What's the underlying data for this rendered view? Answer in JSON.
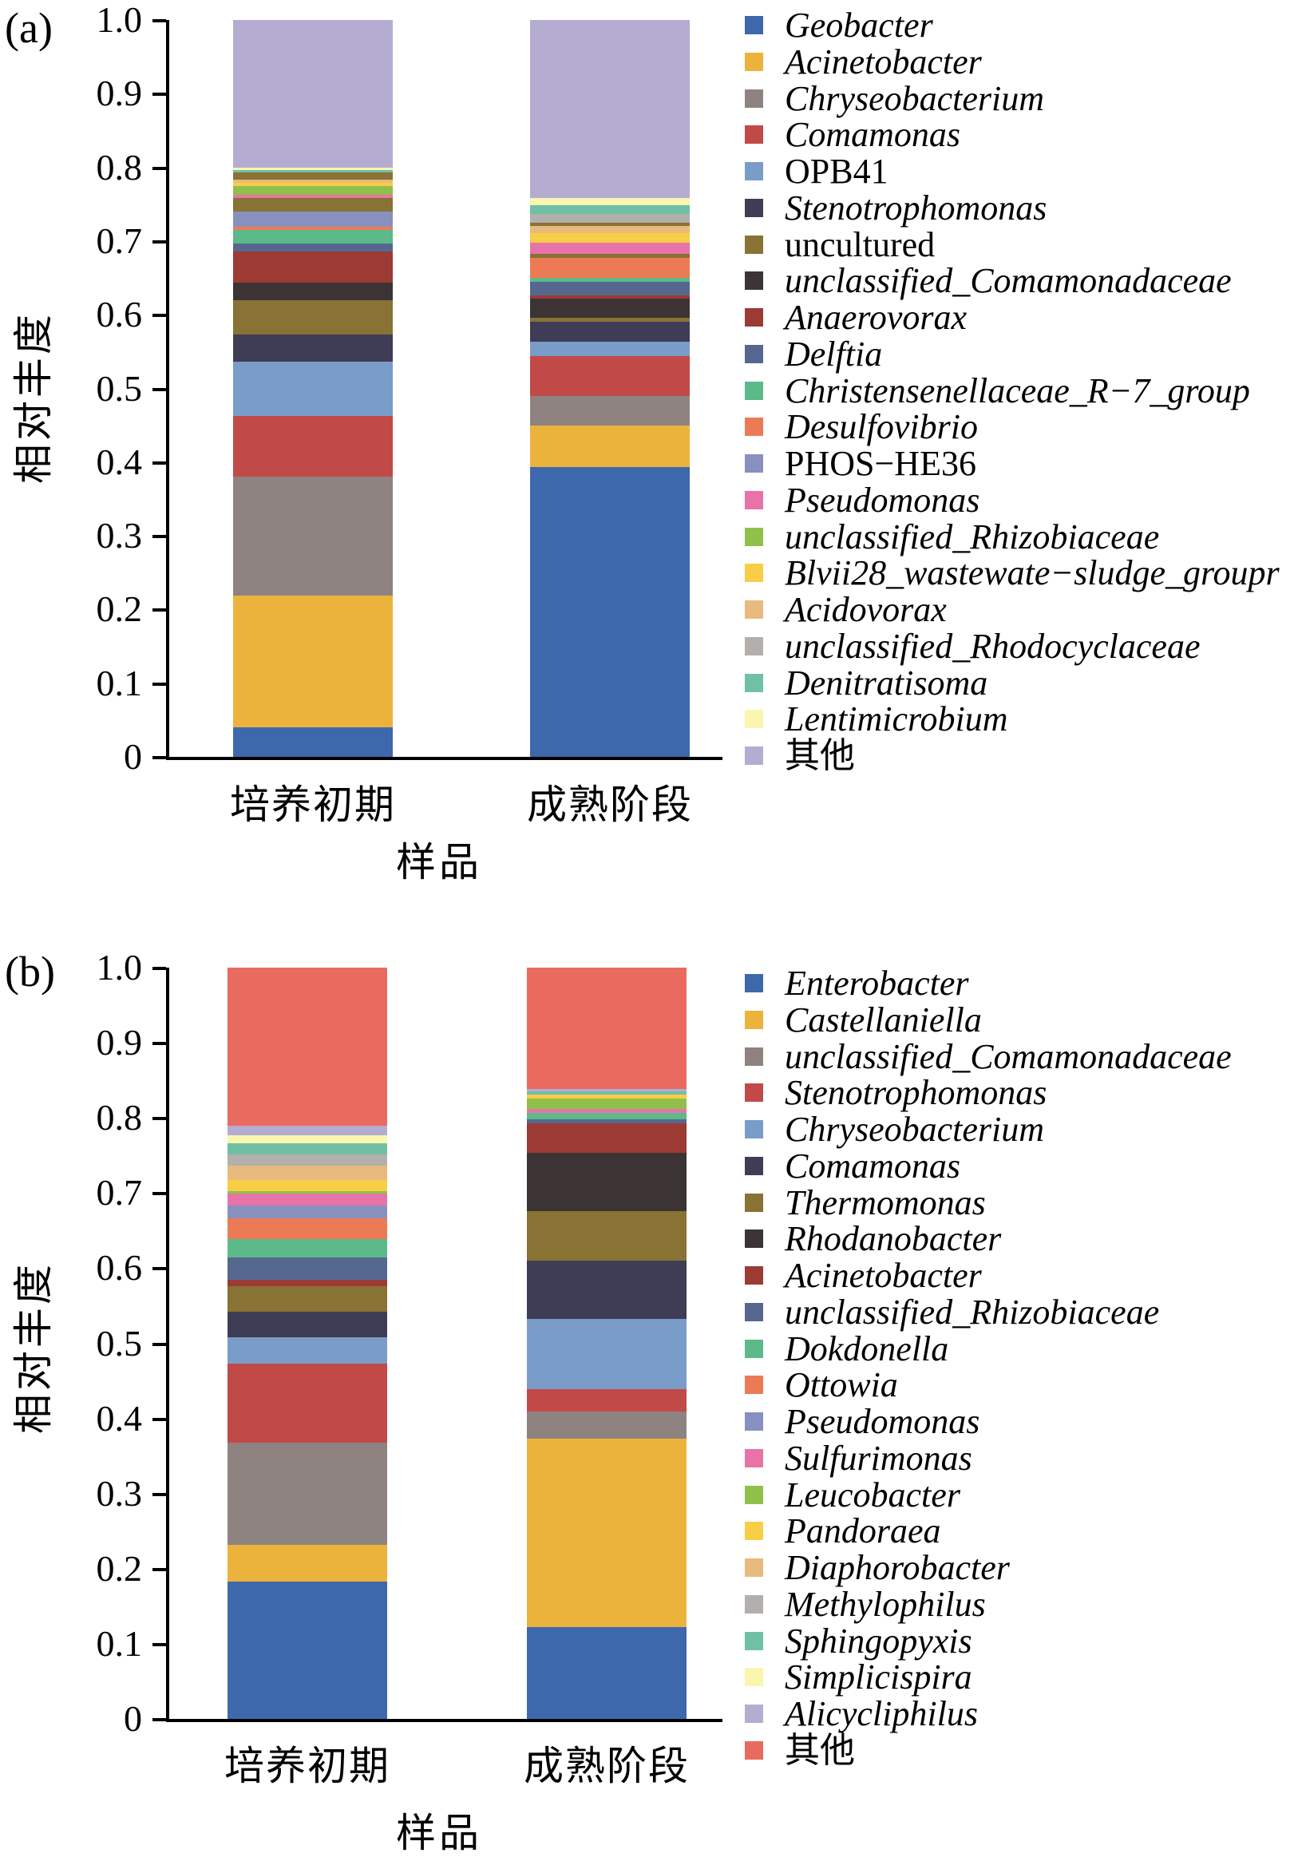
{
  "figure": {
    "panels": [
      "(a)",
      "(b)"
    ],
    "ylabel": "相对丰度",
    "xlabel": "样品",
    "categories": [
      "培养初期",
      "成熟阶段"
    ]
  },
  "chart_data": [
    {
      "type": "stacked_bar",
      "panel": "(a)",
      "ylabel": "相对丰度",
      "xlabel": "样品",
      "ylim": [
        0,
        1
      ],
      "grid": false,
      "legend_position": "right",
      "tick_labels": [
        "1.0",
        "0.9",
        "0.8",
        "0.7",
        "0.6",
        "0.5",
        "0.4",
        "0.3",
        "0.2",
        "0.1",
        "0"
      ],
      "categories": [
        "培养初期",
        "成熟阶段"
      ],
      "legend": [
        {
          "label": "Geobacter",
          "color": "#3E68AC",
          "italic": true
        },
        {
          "label": "Acinetobacter",
          "color": "#ECB33C",
          "italic": true
        },
        {
          "label": "Chryseobacterium",
          "color": "#8E8380",
          "italic": true
        },
        {
          "label": "Comamonas",
          "color": "#C14A48",
          "italic": true
        },
        {
          "label": "OPB41",
          "color": "#7A9CC8",
          "italic": false
        },
        {
          "label": "Stenotrophomonas",
          "color": "#3F3C56",
          "italic": true
        },
        {
          "label": "uncultured",
          "color": "#887234",
          "italic": false
        },
        {
          "label": "unclassified_Comamonadaceae",
          "color": "#3B3334",
          "italic": true
        },
        {
          "label": "Anaerovorax",
          "color": "#9C3A34",
          "italic": true
        },
        {
          "label": "Delftia",
          "color": "#56678F",
          "italic": true
        },
        {
          "label": "Christensenellaceae_R−7_group",
          "color": "#5CB98A",
          "italic": true
        },
        {
          "label": "Desulfovibrio",
          "color": "#EC7B55",
          "italic": true
        },
        {
          "label": "PHOS−HE36",
          "color": "#8890C0",
          "italic": false
        },
        {
          "label": "Pseudomonas",
          "color": "#E873A8",
          "italic": true
        },
        {
          "label": "unclassified_Rhizobiaceae",
          "color": "#8FC04A",
          "italic": true
        },
        {
          "label": "Blvii28_wastewate−sludge_groupr",
          "color": "#F7CE46",
          "italic": true
        },
        {
          "label": "Acidovorax",
          "color": "#E8BA7E",
          "italic": true
        },
        {
          "label": "unclassified_Rhodocyclaceae",
          "color": "#B3AFAC",
          "italic": true
        },
        {
          "label": "Denitratisoma",
          "color": "#6FC0A4",
          "italic": true
        },
        {
          "label": "Lentimicrobium",
          "color": "#FAF6B0",
          "italic": true
        },
        {
          "label": "其他",
          "color": "#B5ACD2",
          "italic": false
        }
      ],
      "bars": [
        {
          "category": "培养初期",
          "segments_top_to_bottom": [
            {
              "taxon": "其他",
              "color": "#B5ACD2",
              "value": 0.2
            },
            {
              "taxon": "Lentimicrobium",
              "color": "#FAF6B0",
              "value": 0.004
            },
            {
              "taxon": "Denitratisoma",
              "color": "#6FC0A4",
              "value": 0.003
            },
            {
              "taxon": "uncultured",
              "color": "#887234",
              "value": 0.01
            },
            {
              "taxon": "Acidovorax",
              "color": "#E8BA7E",
              "value": 0.004
            },
            {
              "taxon": "Blvii28_wastewate−sludge_groupr",
              "color": "#F7CE46",
              "value": 0.004
            },
            {
              "taxon": "unclassified_Rhizobiaceae",
              "color": "#8FC04A",
              "value": 0.012
            },
            {
              "taxon": "Pseudomonas",
              "color": "#E873A8",
              "value": 0.005
            },
            {
              "taxon": "uncultured",
              "color": "#887234",
              "value": 0.018
            },
            {
              "taxon": "PHOS−HE36",
              "color": "#8890C0",
              "value": 0.021
            },
            {
              "taxon": "Desulfovibrio",
              "color": "#EC7B55",
              "value": 0.004
            },
            {
              "taxon": "Christensenellaceae_R−7_group",
              "color": "#5CB98A",
              "value": 0.018
            },
            {
              "taxon": "Delftia",
              "color": "#56678F",
              "value": 0.011
            },
            {
              "taxon": "Anaerovorax",
              "color": "#9C3A34",
              "value": 0.042
            },
            {
              "taxon": "unclassified_Comamonadaceae",
              "color": "#3B3334",
              "value": 0.024
            },
            {
              "taxon": "uncultured",
              "color": "#887234",
              "value": 0.047
            },
            {
              "taxon": "Stenotrophomonas",
              "color": "#3F3C56",
              "value": 0.037
            },
            {
              "taxon": "OPB41",
              "color": "#7A9CC8",
              "value": 0.073
            },
            {
              "taxon": "Comamonas",
              "color": "#C14A48",
              "value": 0.083
            },
            {
              "taxon": "Chryseobacterium",
              "color": "#8E8380",
              "value": 0.161
            },
            {
              "taxon": "Acinetobacter",
              "color": "#ECB33C",
              "value": 0.179
            },
            {
              "taxon": "Geobacter",
              "color": "#3E68AC",
              "value": 0.04
            }
          ]
        },
        {
          "category": "成熟阶段",
          "segments_top_to_bottom": [
            {
              "taxon": "其他",
              "color": "#B5ACD2",
              "value": 0.242
            },
            {
              "taxon": "Lentimicrobium",
              "color": "#FAF6B0",
              "value": 0.009
            },
            {
              "taxon": "Denitratisoma",
              "color": "#6FC0A4",
              "value": 0.012
            },
            {
              "taxon": "unclassified_Rhodocyclaceae",
              "color": "#B3AFAC",
              "value": 0.012
            },
            {
              "taxon": "uncultured",
              "color": "#887234",
              "value": 0.004
            },
            {
              "taxon": "Acidovorax",
              "color": "#E8BA7E",
              "value": 0.01
            },
            {
              "taxon": "Blvii28_wastewate−sludge_groupr",
              "color": "#F7CE46",
              "value": 0.013
            },
            {
              "taxon": "Pseudomonas",
              "color": "#E873A8",
              "value": 0.015
            },
            {
              "taxon": "uncultured",
              "color": "#887234",
              "value": 0.006
            },
            {
              "taxon": "Desulfovibrio",
              "color": "#EC7B55",
              "value": 0.027
            },
            {
              "taxon": "Christensenellaceae_R−7_group",
              "color": "#5CB98A",
              "value": 0.006
            },
            {
              "taxon": "Delftia",
              "color": "#56678F",
              "value": 0.018
            },
            {
              "taxon": "Anaerovorax",
              "color": "#9C3A34",
              "value": 0.004
            },
            {
              "taxon": "unclassified_Comamonadaceae",
              "color": "#3B3334",
              "value": 0.026
            },
            {
              "taxon": "uncultured",
              "color": "#887234",
              "value": 0.006
            },
            {
              "taxon": "Stenotrophomonas",
              "color": "#3F3C56",
              "value": 0.027
            },
            {
              "taxon": "OPB41",
              "color": "#7A9CC8",
              "value": 0.019
            },
            {
              "taxon": "Comamonas",
              "color": "#C14A48",
              "value": 0.055
            },
            {
              "taxon": "Chryseobacterium",
              "color": "#8E8380",
              "value": 0.04
            },
            {
              "taxon": "Acinetobacter",
              "color": "#ECB33C",
              "value": 0.056
            },
            {
              "taxon": "Geobacter",
              "color": "#3E68AC",
              "value": 0.393
            }
          ]
        }
      ]
    },
    {
      "type": "stacked_bar",
      "panel": "(b)",
      "ylabel": "相对丰度",
      "xlabel": "样品",
      "ylim": [
        0,
        1
      ],
      "grid": false,
      "legend_position": "right",
      "tick_labels": [
        "1.0",
        "0.9",
        "0.8",
        "0.7",
        "0.6",
        "0.5",
        "0.4",
        "0.3",
        "0.2",
        "0.1",
        "0"
      ],
      "categories": [
        "培养初期",
        "成熟阶段"
      ],
      "legend": [
        {
          "label": "Enterobacter",
          "color": "#3E68AC",
          "italic": true
        },
        {
          "label": "Castellaniella",
          "color": "#ECB33C",
          "italic": true
        },
        {
          "label": "unclassified_Comamonadaceae",
          "color": "#8E8380",
          "italic": true
        },
        {
          "label": "Stenotrophomonas",
          "color": "#C14A48",
          "italic": true
        },
        {
          "label": "Chryseobacterium",
          "color": "#7A9CC8",
          "italic": true
        },
        {
          "label": "Comamonas",
          "color": "#3F3C56",
          "italic": true
        },
        {
          "label": "Thermomonas",
          "color": "#887234",
          "italic": true
        },
        {
          "label": "Rhodanobacter",
          "color": "#3B3334",
          "italic": true
        },
        {
          "label": "Acinetobacter",
          "color": "#9C3A34",
          "italic": true
        },
        {
          "label": "unclassified_Rhizobiaceae",
          "color": "#56678F",
          "italic": true
        },
        {
          "label": "Dokdonella",
          "color": "#5CB98A",
          "italic": true
        },
        {
          "label": "Ottowia",
          "color": "#EC7B55",
          "italic": true
        },
        {
          "label": "Pseudomonas",
          "color": "#8890C0",
          "italic": true
        },
        {
          "label": "Sulfurimonas",
          "color": "#E873A8",
          "italic": true
        },
        {
          "label": "Leucobacter",
          "color": "#8FC04A",
          "italic": true
        },
        {
          "label": "Pandoraea",
          "color": "#F7CE46",
          "italic": true
        },
        {
          "label": "Diaphorobacter",
          "color": "#E8BA7E",
          "italic": true
        },
        {
          "label": "Methylophilus",
          "color": "#B3AFAC",
          "italic": true
        },
        {
          "label": "Sphingopyxis",
          "color": "#6FC0A4",
          "italic": true
        },
        {
          "label": "Simplicispira",
          "color": "#FAF6B0",
          "italic": true
        },
        {
          "label": "Alicycliphilus",
          "color": "#B5ACD2",
          "italic": true
        },
        {
          "label": "其他",
          "color": "#E96A5F",
          "italic": false
        }
      ],
      "bars": [
        {
          "category": "培养初期",
          "segments_top_to_bottom": [
            {
              "taxon": "其他",
              "color": "#E96A5F",
              "value": 0.21
            },
            {
              "taxon": "Alicycliphilus",
              "color": "#B5ACD2",
              "value": 0.013
            },
            {
              "taxon": "Simplicispira",
              "color": "#FAF6B0",
              "value": 0.011
            },
            {
              "taxon": "Sphingopyxis",
              "color": "#6FC0A4",
              "value": 0.015
            },
            {
              "taxon": "Methylophilus",
              "color": "#B3AFAC",
              "value": 0.015
            },
            {
              "taxon": "Diaphorobacter",
              "color": "#E8BA7E",
              "value": 0.019
            },
            {
              "taxon": "Pandoraea",
              "color": "#F7CE46",
              "value": 0.015
            },
            {
              "taxon": "Leucobacter",
              "color": "#8FC04A",
              "value": 0.003
            },
            {
              "taxon": "Sulfurimonas",
              "color": "#E873A8",
              "value": 0.016
            },
            {
              "taxon": "Pseudomonas",
              "color": "#8890C0",
              "value": 0.017
            },
            {
              "taxon": "Ottowia",
              "color": "#EC7B55",
              "value": 0.027
            },
            {
              "taxon": "Dokdonella",
              "color": "#5CB98A",
              "value": 0.025
            },
            {
              "taxon": "unclassified_Rhizobiaceae",
              "color": "#56678F",
              "value": 0.03
            },
            {
              "taxon": "Acinetobacter",
              "color": "#9C3A34",
              "value": 0.008
            },
            {
              "taxon": "Thermomonas",
              "color": "#887234",
              "value": 0.034
            },
            {
              "taxon": "Comamonas",
              "color": "#3F3C56",
              "value": 0.034
            },
            {
              "taxon": "Chryseobacterium",
              "color": "#7A9CC8",
              "value": 0.035
            },
            {
              "taxon": "Stenotrophomonas",
              "color": "#C14A48",
              "value": 0.106
            },
            {
              "taxon": "unclassified_Comamonadaceae",
              "color": "#8E8380",
              "value": 0.136
            },
            {
              "taxon": "Castellaniella",
              "color": "#ECB33C",
              "value": 0.049
            },
            {
              "taxon": "Enterobacter",
              "color": "#3E68AC",
              "value": 0.182
            }
          ]
        },
        {
          "category": "成熟阶段",
          "segments_top_to_bottom": [
            {
              "taxon": "其他",
              "color": "#E96A5F",
              "value": 0.161
            },
            {
              "taxon": "Alicycliphilus",
              "color": "#B5ACD2",
              "value": 0.004
            },
            {
              "taxon": "Sphingopyxis",
              "color": "#6FC0A4",
              "value": 0.004
            },
            {
              "taxon": "Pandoraea",
              "color": "#F7CE46",
              "value": 0.005
            },
            {
              "taxon": "Leucobacter",
              "color": "#8FC04A",
              "value": 0.014
            },
            {
              "taxon": "Sulfurimonas",
              "color": "#E873A8",
              "value": 0.005
            },
            {
              "taxon": "Dokdonella",
              "color": "#5CB98A",
              "value": 0.009
            },
            {
              "taxon": "unclassified_Rhizobiaceae",
              "color": "#56678F",
              "value": 0.005
            },
            {
              "taxon": "Acinetobacter",
              "color": "#9C3A34",
              "value": 0.04
            },
            {
              "taxon": "Rhodanobacter",
              "color": "#3B3334",
              "value": 0.077
            },
            {
              "taxon": "Thermomonas",
              "color": "#887234",
              "value": 0.066
            },
            {
              "taxon": "Comamonas",
              "color": "#3F3C56",
              "value": 0.078
            },
            {
              "taxon": "Chryseobacterium",
              "color": "#7A9CC8",
              "value": 0.093
            },
            {
              "taxon": "Stenotrophomonas",
              "color": "#C14A48",
              "value": 0.03
            },
            {
              "taxon": "unclassified_Comamonadaceae",
              "color": "#8E8380",
              "value": 0.036
            },
            {
              "taxon": "Castellaniella",
              "color": "#ECB33C",
              "value": 0.251
            },
            {
              "taxon": "Enterobacter",
              "color": "#3E68AC",
              "value": 0.122
            }
          ]
        }
      ]
    }
  ]
}
